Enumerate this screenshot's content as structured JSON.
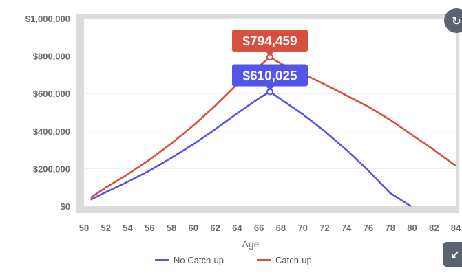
{
  "chart_data": {
    "type": "line",
    "xlabel": "Age",
    "ylabel": "",
    "xlim": [
      50,
      84
    ],
    "ylim": [
      0,
      1000000
    ],
    "x_ticks": [
      "50",
      "52",
      "54",
      "56",
      "58",
      "60",
      "62",
      "64",
      "66",
      "68",
      "70",
      "72",
      "74",
      "76",
      "78",
      "80",
      "82",
      "84"
    ],
    "y_ticks": [
      "$0",
      "$200,000",
      "$400,000",
      "$600,000",
      "$800,000",
      "$1,000,000"
    ],
    "y_tick_values": [
      0,
      200000,
      400000,
      600000,
      800000,
      1000000
    ],
    "grid": true,
    "legend_position": "bottom",
    "series": [
      {
        "name": "No Catch-up",
        "color": "#5355e6",
        "x": [
          50.6,
          52,
          54,
          56,
          58,
          60,
          62,
          64,
          66,
          67,
          68,
          70,
          72,
          74,
          76,
          78,
          79.9
        ],
        "y": [
          35000,
          75000,
          130000,
          190000,
          258000,
          330000,
          410000,
          495000,
          575000,
          610025,
          570000,
          490000,
          400000,
          300000,
          190000,
          70000,
          0
        ]
      },
      {
        "name": "Catch-up",
        "color": "#d64f3f",
        "x": [
          50.6,
          52,
          54,
          56,
          58,
          60,
          62,
          64,
          66,
          67,
          68,
          70,
          72,
          74,
          76,
          78,
          80,
          82,
          84
        ],
        "y": [
          45000,
          100000,
          170000,
          248000,
          335000,
          430000,
          535000,
          650000,
          745000,
          794459,
          760000,
          705000,
          650000,
          590000,
          530000,
          460000,
          380000,
          300000,
          215000
        ]
      }
    ],
    "annotations": [
      {
        "series": "Catch-up",
        "x": 67,
        "y": 794459,
        "label": "$794,459",
        "color": "#d64f3f"
      },
      {
        "series": "No Catch-up",
        "x": 67,
        "y": 610025,
        "label": "$610,025",
        "color": "#5355e6"
      }
    ]
  },
  "legend": {
    "items": [
      {
        "label": "No Catch-up",
        "color": "#5355e6"
      },
      {
        "label": "Catch-up",
        "color": "#d64f3f"
      }
    ]
  },
  "controls": {
    "top_icon": "refresh-icon",
    "bottom_icon": "collapse-icon"
  }
}
